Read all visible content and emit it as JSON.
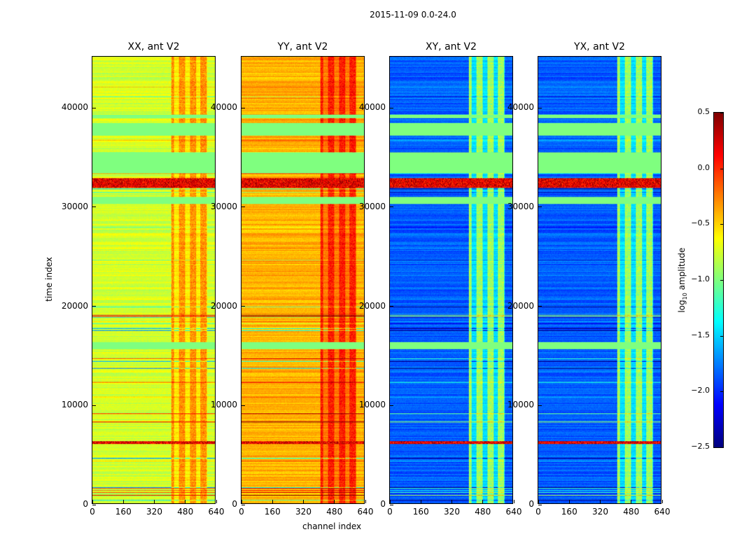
{
  "chart_data": {
    "type": "heatmap",
    "suptitle": "2015-11-09 0.0-24.0",
    "panels": [
      {
        "title": "XX, ant V2",
        "base_level": -0.75,
        "hot_level": -0.3
      },
      {
        "title": "YY, ant V2",
        "base_level": -0.4,
        "hot_level": 0.05
      },
      {
        "title": "XY, ant V2",
        "base_level": -1.85,
        "hot_level": -0.9
      },
      {
        "title": "YX, ant V2",
        "base_level": -1.85,
        "hot_level": -0.9
      }
    ],
    "xlabel": "channel index",
    "ylabel": "time index",
    "xlim": [
      0,
      640
    ],
    "ylim": [
      0,
      45150
    ],
    "xticks": [
      0,
      160,
      320,
      480,
      640
    ],
    "yticks": [
      0,
      10000,
      20000,
      30000,
      40000
    ],
    "hot_channel_range": [
      410,
      600
    ],
    "flagged_time_ranges": [
      [
        15600,
        16350
      ],
      [
        30300,
        31000
      ],
      [
        33400,
        35500
      ],
      [
        37200,
        38450
      ],
      [
        39000,
        39300
      ]
    ],
    "flag_level": -1.0,
    "strong_time_ranges": [
      [
        31900,
        32900
      ],
      [
        6000,
        6300
      ]
    ],
    "colorbar": {
      "label": "log10 amplitude",
      "label_main": "log",
      "label_sub": "10",
      "label_rest": " amplitude",
      "colormap": "jet",
      "range": [
        -2.5,
        0.5
      ],
      "ticks": [
        "0.5",
        "0.0",
        "−0.5",
        "−1.0",
        "−1.5",
        "−2.0",
        "−2.5"
      ],
      "tick_values": [
        0.5,
        0.0,
        -0.5,
        -1.0,
        -1.5,
        -2.0,
        -2.5
      ]
    }
  }
}
